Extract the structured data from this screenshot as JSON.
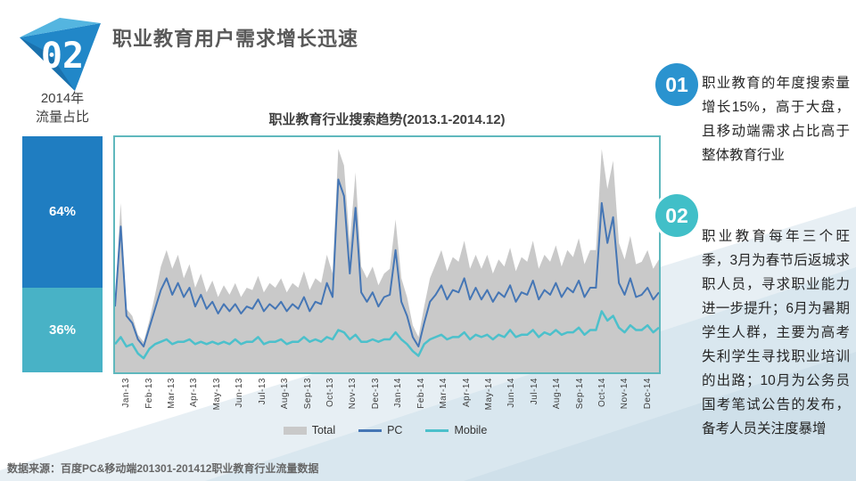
{
  "header": {
    "slide_number": "02",
    "title": "职业教育用户需求增长迅速"
  },
  "colors": {
    "bar_pc": "#1f7dc1",
    "bar_mobile": "#48b2c6",
    "chart_border": "#5fb8bd",
    "total_gray": "#c9c9c9",
    "pc_line": "#4576b5",
    "mobile_line": "#4cc0cb",
    "badge_1": "#2a93cf",
    "badge_2": "#41bfc8"
  },
  "callouts": [
    {
      "number": "01",
      "text": "职业教育的年度搜索量增长15%，高于大盘，且移动端需求占比高于整体教育行业"
    },
    {
      "number": "02",
      "text": "职业教育每年三个旺季，3月为春节后返城求职人员，寻求职业能力进一步提升；6月为暑期学生人群，主要为高考失利学生寻找职业培训的出路；10月为公务员国考笔试公告的发布，备考人员关注度暴增"
    }
  ],
  "source_note": "数据来源：百度PC&移动端201301-201412职业教育行业流量数据",
  "chart_data": [
    {
      "type": "area",
      "title": "职业教育行业搜索趋势(2013.1-2014.12)",
      "xlabel": "",
      "ylabel": "",
      "ylim": [
        0,
        1
      ],
      "grid": false,
      "legend_position": "bottom",
      "categories": [
        "Jan-13",
        "Feb-13",
        "Mar-13",
        "Apr-13",
        "May-13",
        "Jun-13",
        "Jul-13",
        "Aug-13",
        "Sep-13",
        "Oct-13",
        "Nov-13",
        "Dec-13",
        "Jan-14",
        "Feb-14",
        "Mar-14",
        "Apr-14",
        "May-14",
        "Jun-14",
        "Jul-14",
        "Aug-14",
        "Sep-14",
        "Oct-14",
        "Nov-14",
        "Dec-14"
      ],
      "points_per_month": 4,
      "series": [
        {
          "name": "Total",
          "type": "area",
          "color": "#c9c9c9",
          "values": [
            0.3,
            0.72,
            0.27,
            0.24,
            0.16,
            0.13,
            0.22,
            0.33,
            0.45,
            0.52,
            0.44,
            0.5,
            0.4,
            0.46,
            0.36,
            0.42,
            0.34,
            0.39,
            0.32,
            0.37,
            0.33,
            0.38,
            0.32,
            0.36,
            0.35,
            0.41,
            0.34,
            0.38,
            0.36,
            0.4,
            0.34,
            0.38,
            0.36,
            0.43,
            0.35,
            0.4,
            0.38,
            0.5,
            0.42,
            0.95,
            0.88,
            0.55,
            0.85,
            0.45,
            0.4,
            0.45,
            0.37,
            0.42,
            0.44,
            0.65,
            0.4,
            0.32,
            0.2,
            0.15,
            0.28,
            0.4,
            0.46,
            0.52,
            0.43,
            0.49,
            0.47,
            0.56,
            0.44,
            0.5,
            0.44,
            0.5,
            0.42,
            0.48,
            0.45,
            0.53,
            0.43,
            0.49,
            0.47,
            0.56,
            0.44,
            0.5,
            0.47,
            0.54,
            0.45,
            0.52,
            0.49,
            0.57,
            0.46,
            0.52,
            0.52,
            0.95,
            0.78,
            0.9,
            0.55,
            0.48,
            0.58,
            0.46,
            0.47,
            0.52,
            0.44,
            0.48
          ]
        },
        {
          "name": "PC",
          "type": "line",
          "color": "#4576b5",
          "stroke_width": 2,
          "values": [
            0.28,
            0.62,
            0.24,
            0.21,
            0.14,
            0.11,
            0.19,
            0.27,
            0.35,
            0.4,
            0.33,
            0.38,
            0.32,
            0.36,
            0.28,
            0.33,
            0.27,
            0.3,
            0.25,
            0.29,
            0.26,
            0.29,
            0.25,
            0.28,
            0.27,
            0.31,
            0.26,
            0.29,
            0.27,
            0.3,
            0.26,
            0.29,
            0.27,
            0.32,
            0.26,
            0.3,
            0.29,
            0.38,
            0.32,
            0.82,
            0.75,
            0.42,
            0.7,
            0.34,
            0.3,
            0.34,
            0.28,
            0.32,
            0.33,
            0.52,
            0.3,
            0.24,
            0.15,
            0.11,
            0.21,
            0.3,
            0.33,
            0.37,
            0.31,
            0.35,
            0.34,
            0.4,
            0.31,
            0.36,
            0.31,
            0.35,
            0.3,
            0.34,
            0.32,
            0.37,
            0.3,
            0.34,
            0.33,
            0.39,
            0.31,
            0.35,
            0.33,
            0.38,
            0.32,
            0.36,
            0.34,
            0.39,
            0.32,
            0.36,
            0.36,
            0.72,
            0.55,
            0.66,
            0.38,
            0.33,
            0.4,
            0.32,
            0.33,
            0.36,
            0.31,
            0.34
          ]
        },
        {
          "name": "Mobile",
          "type": "line",
          "color": "#4cc0cb",
          "stroke_width": 2.5,
          "values": [
            0.12,
            0.15,
            0.11,
            0.12,
            0.08,
            0.06,
            0.1,
            0.12,
            0.13,
            0.14,
            0.12,
            0.13,
            0.13,
            0.14,
            0.12,
            0.13,
            0.12,
            0.13,
            0.12,
            0.13,
            0.12,
            0.14,
            0.12,
            0.13,
            0.13,
            0.15,
            0.12,
            0.13,
            0.13,
            0.14,
            0.12,
            0.13,
            0.13,
            0.15,
            0.13,
            0.14,
            0.13,
            0.15,
            0.14,
            0.18,
            0.17,
            0.14,
            0.16,
            0.13,
            0.13,
            0.14,
            0.13,
            0.14,
            0.14,
            0.17,
            0.14,
            0.12,
            0.09,
            0.07,
            0.12,
            0.14,
            0.15,
            0.16,
            0.14,
            0.15,
            0.15,
            0.17,
            0.14,
            0.16,
            0.15,
            0.16,
            0.14,
            0.16,
            0.15,
            0.18,
            0.15,
            0.16,
            0.16,
            0.18,
            0.15,
            0.17,
            0.16,
            0.18,
            0.16,
            0.17,
            0.17,
            0.19,
            0.16,
            0.18,
            0.18,
            0.26,
            0.22,
            0.24,
            0.19,
            0.17,
            0.2,
            0.18,
            0.18,
            0.2,
            0.17,
            0.19
          ]
        }
      ]
    },
    {
      "type": "bar",
      "stacked": true,
      "title_lines": [
        "2014年",
        "流量占比"
      ],
      "unit": "%",
      "segments": [
        {
          "name": "PC",
          "label": "64%",
          "value": 64,
          "color": "#1f7dc1"
        },
        {
          "name": "Mobile",
          "label": "36%",
          "value": 36,
          "color": "#48b2c6"
        }
      ]
    }
  ]
}
